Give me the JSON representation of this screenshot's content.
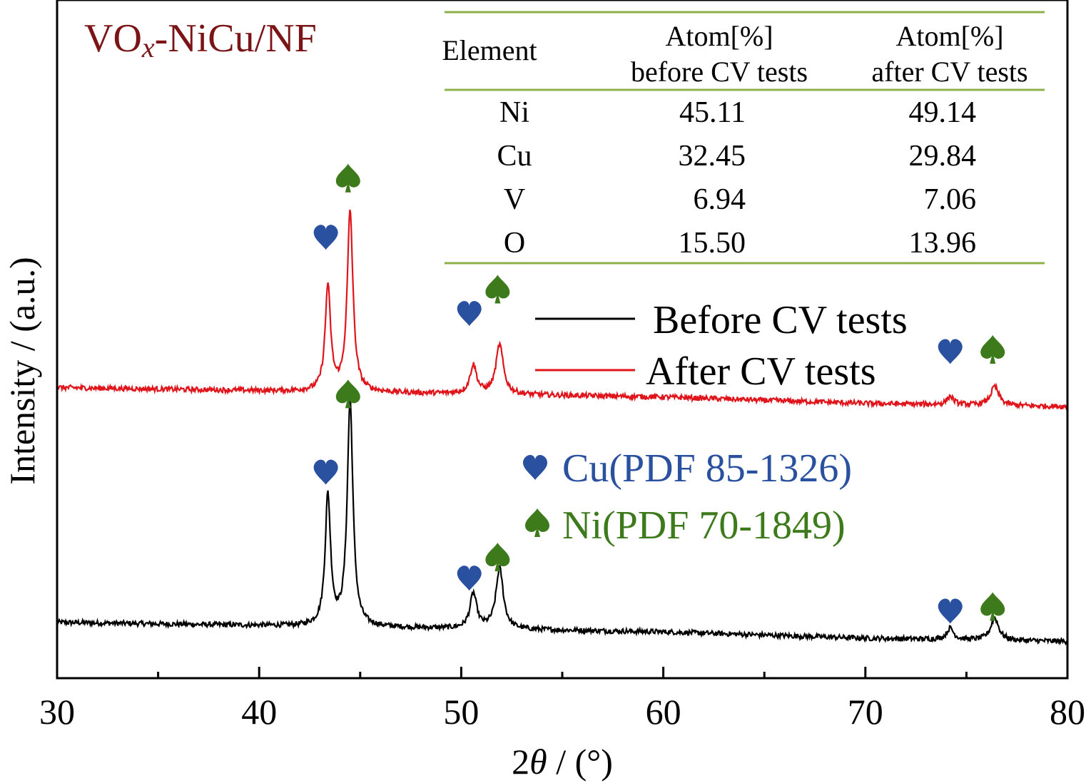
{
  "chart_data": {
    "type": "line",
    "title": "",
    "sample_label": {
      "main": "VO",
      "sub": "x",
      "rest": "-NiCu/NF",
      "color": "#7a1416"
    },
    "xlabel": {
      "prefix": "2",
      "symbol": "θ",
      "suffix": " / (°)"
    },
    "ylabel": "Intensity / (a.u.)",
    "xlim": [
      30,
      80
    ],
    "xticks": [
      30,
      40,
      50,
      60,
      70,
      80
    ],
    "xticks_minor": [
      35,
      45,
      55,
      65,
      75
    ],
    "yticks_shown": false,
    "series": [
      {
        "name": "Before CV tests",
        "color": "#000000",
        "baseline": 0.0,
        "noise": 0.004,
        "background": [
          [
            30,
            0.025
          ],
          [
            40,
            0.02
          ],
          [
            50,
            0.015
          ],
          [
            60,
            0.01
          ],
          [
            70,
            0.0
          ],
          [
            80,
            -0.005
          ]
        ],
        "peaks": [
          [
            43.4,
            0.205,
            0.16
          ],
          [
            44.5,
            0.355,
            0.17
          ],
          [
            50.6,
            0.055,
            0.2
          ],
          [
            51.9,
            0.095,
            0.22
          ],
          [
            74.2,
            0.018,
            0.2
          ],
          [
            76.4,
            0.035,
            0.24
          ]
        ]
      },
      {
        "name": "After CV tests",
        "color": "#e0151b",
        "baseline": 0.37,
        "noise": 0.004,
        "background": [
          [
            30,
            0.025
          ],
          [
            40,
            0.02
          ],
          [
            50,
            0.015
          ],
          [
            60,
            0.01
          ],
          [
            70,
            0.0
          ],
          [
            80,
            -0.005
          ]
        ],
        "peaks": [
          [
            43.4,
            0.165,
            0.16
          ],
          [
            44.5,
            0.285,
            0.17
          ],
          [
            50.6,
            0.045,
            0.2
          ],
          [
            51.9,
            0.078,
            0.22
          ],
          [
            74.2,
            0.013,
            0.2
          ],
          [
            76.4,
            0.03,
            0.24
          ]
        ]
      }
    ],
    "legend": {
      "position": "right-middle",
      "entries": [
        {
          "label": "Before CV tests",
          "color": "#000000"
        },
        {
          "label": "After CV tests",
          "color": "#e0151b"
        }
      ]
    },
    "phase_legend": [
      {
        "symbol": "heart",
        "label": "Cu(PDF 85-1326)",
        "color": "#2a50a0"
      },
      {
        "symbol": "spade",
        "label": "Ni(PDF 70-1849)",
        "color": "#3d7a1c"
      }
    ],
    "markers": [
      {
        "symbol": "heart",
        "x": 43.3,
        "y": 0.63,
        "color": "#2a50a0"
      },
      {
        "symbol": "spade",
        "x": 44.4,
        "y": 0.725,
        "color": "#3d7a1c"
      },
      {
        "symbol": "heart",
        "x": 50.4,
        "y": 0.51,
        "color": "#2a50a0"
      },
      {
        "symbol": "spade",
        "x": 51.8,
        "y": 0.55,
        "color": "#3d7a1c"
      },
      {
        "symbol": "heart",
        "x": 74.2,
        "y": 0.45,
        "color": "#2a50a0"
      },
      {
        "symbol": "spade",
        "x": 76.3,
        "y": 0.455,
        "color": "#3d7a1c"
      },
      {
        "symbol": "heart",
        "x": 43.3,
        "y": 0.26,
        "color": "#2a50a0"
      },
      {
        "symbol": "spade",
        "x": 44.4,
        "y": 0.385,
        "color": "#3d7a1c"
      },
      {
        "symbol": "heart",
        "x": 50.4,
        "y": 0.093,
        "color": "#2a50a0"
      },
      {
        "symbol": "spade",
        "x": 51.8,
        "y": 0.128,
        "color": "#3d7a1c"
      },
      {
        "symbol": "heart",
        "x": 74.2,
        "y": 0.041,
        "color": "#2a50a0"
      },
      {
        "symbol": "spade",
        "x": 76.3,
        "y": 0.05,
        "color": "#3d7a1c"
      }
    ]
  },
  "composition_table": {
    "rule_color": "#8cb04a",
    "headers": {
      "element": "Element",
      "before": [
        "Atom[%]",
        "before CV tests"
      ],
      "after": [
        "Atom[%]",
        "after CV tests"
      ]
    },
    "rows": [
      {
        "element": "Ni",
        "before": "45.11",
        "after": "49.14"
      },
      {
        "element": "Cu",
        "before": "32.45",
        "after": "29.84"
      },
      {
        "element": "V",
        "before": "6.94",
        "after": "7.06"
      },
      {
        "element": "O",
        "before": "15.50",
        "after": "13.96"
      }
    ]
  }
}
